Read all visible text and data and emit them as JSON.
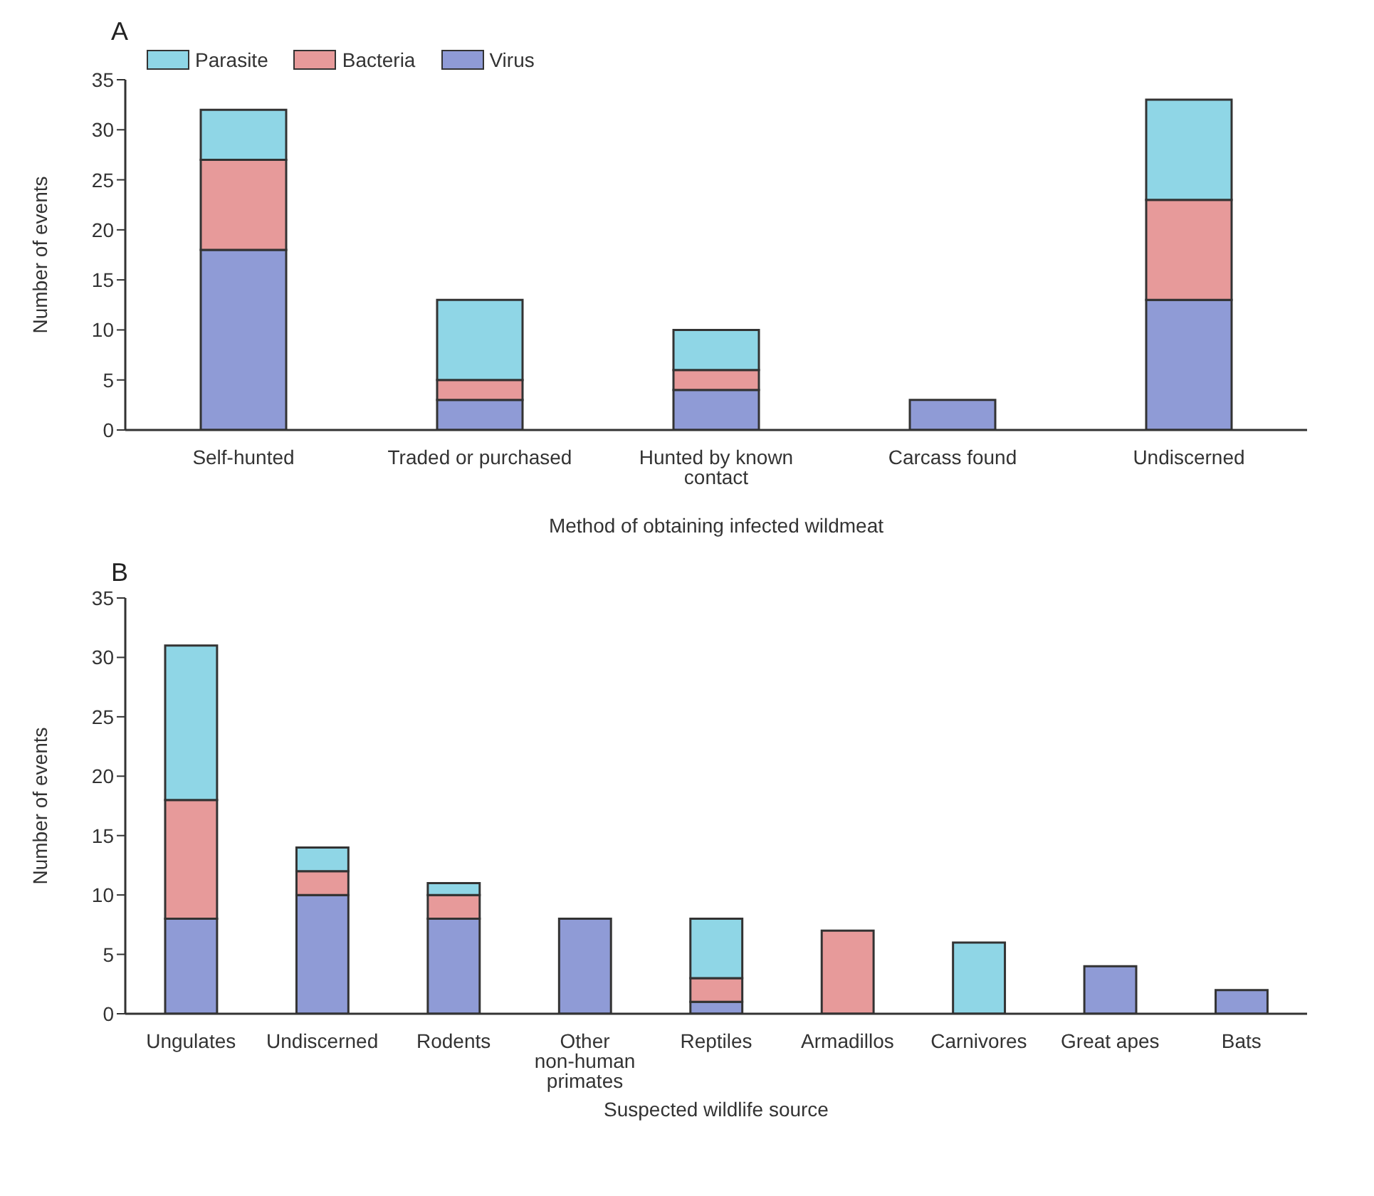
{
  "chart_data": [
    {
      "type": "bar",
      "title": "A",
      "xlabel": "Method of obtaining infected wildmeat",
      "ylabel": "Number of events",
      "stacked": true,
      "legend": "top left",
      "grid": false,
      "categories": [
        "Self-hunted",
        "Traded or purchased",
        "Hunted by known contact",
        "Carcass found",
        "Undiscerned"
      ],
      "ylim": [
        0,
        35
      ],
      "yticks": [
        0,
        5,
        10,
        15,
        20,
        25,
        30,
        35
      ],
      "series": [
        {
          "name": "Virus",
          "color": "#8f9bd6",
          "values": [
            18,
            3,
            4,
            3,
            13
          ]
        },
        {
          "name": "Bacteria",
          "color": "#e79a9a",
          "values": [
            9,
            2,
            2,
            0,
            10
          ]
        },
        {
          "name": "Parasite",
          "color": "#8fd6e6",
          "values": [
            5,
            8,
            4,
            0,
            10
          ]
        }
      ]
    },
    {
      "type": "bar",
      "title": "B",
      "xlabel": "Suspected wildlife source",
      "ylabel": "Number of events",
      "stacked": true,
      "grid": false,
      "categories": [
        "Ungulates",
        "Undiscerned",
        "Rodents",
        "Other non-human primates",
        "Reptiles",
        "Armadillos",
        "Carnivores",
        "Great apes",
        "Bats"
      ],
      "ylim": [
        0,
        35
      ],
      "yticks": [
        0,
        5,
        10,
        15,
        20,
        25,
        30,
        35
      ],
      "series": [
        {
          "color": "#8f9bd6",
          "values": [
            8,
            10,
            8,
            8,
            1,
            0,
            0,
            4,
            2
          ]
        },
        {
          "color": "#e79a9a",
          "values": [
            10,
            2,
            2,
            0,
            2,
            7,
            0,
            0,
            0
          ]
        },
        {
          "color": "#8fd6e6",
          "values": [
            13,
            2,
            1,
            0,
            5,
            0,
            6,
            0,
            0
          ]
        }
      ]
    }
  ]
}
